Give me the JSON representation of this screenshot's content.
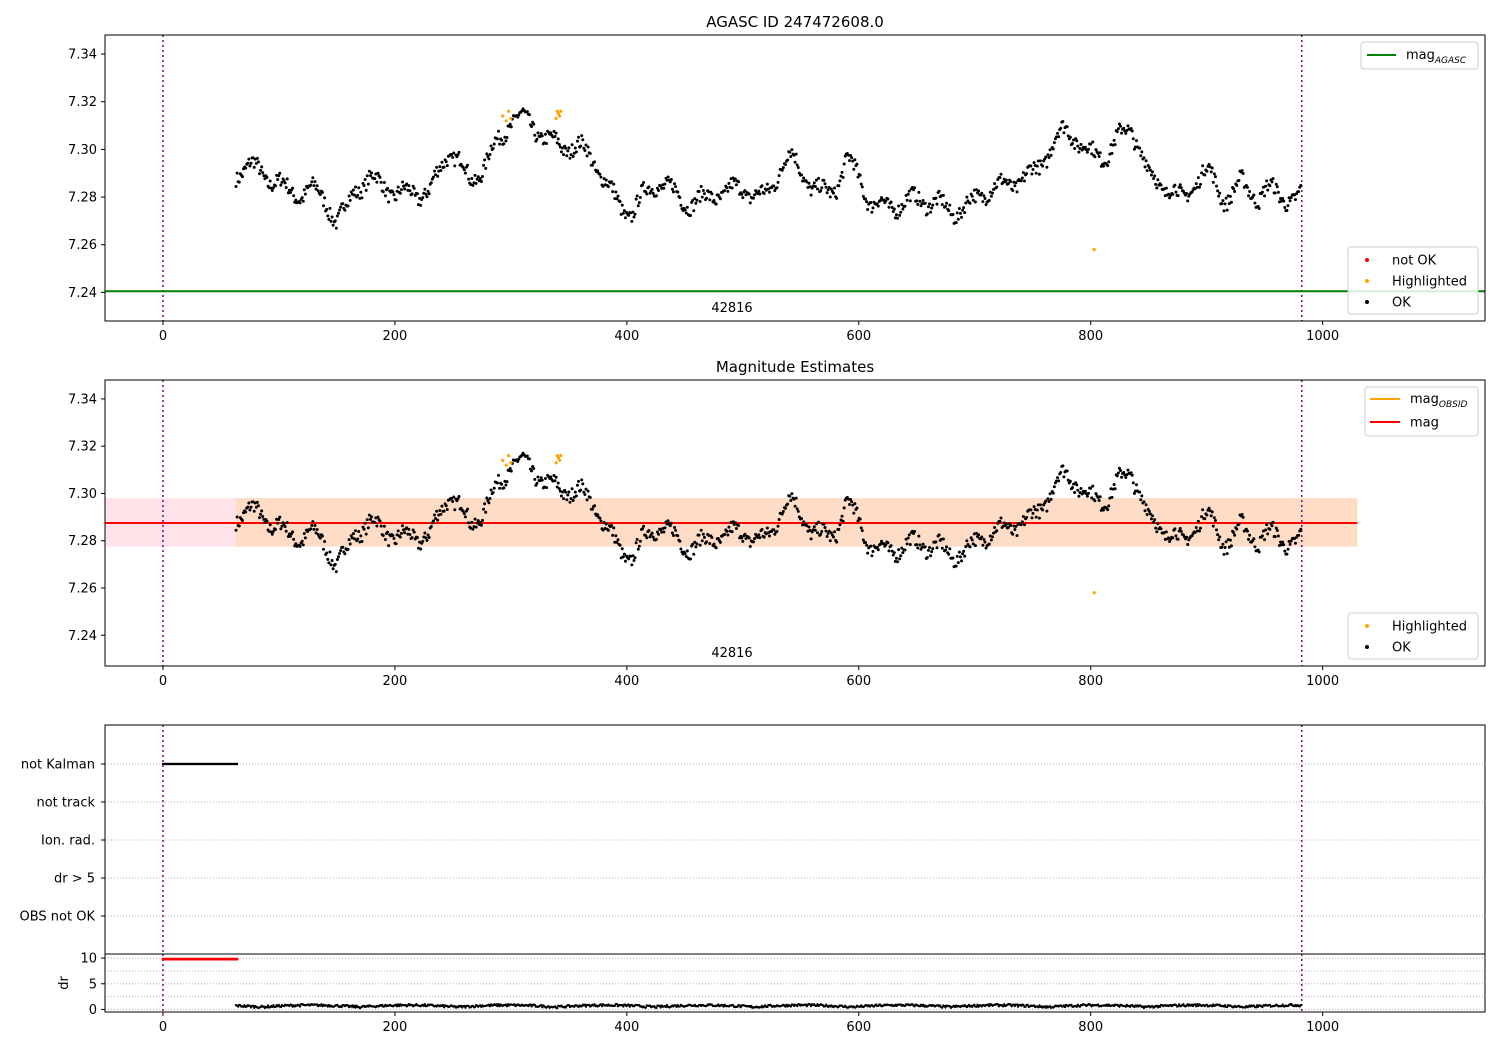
{
  "chart_data": [
    {
      "type": "scatter",
      "title": "AGASC ID 247472608.0",
      "xlabel": "",
      "ylabel": "",
      "xlim": [
        -50,
        1140
      ],
      "ylim": [
        7.228,
        7.348
      ],
      "x_ticks": [
        0,
        200,
        400,
        600,
        800,
        1000
      ],
      "y_ticks": [
        7.24,
        7.26,
        7.28,
        7.3,
        7.32,
        7.34
      ],
      "y_tick_labels": [
        "7.24",
        "7.26",
        "7.28",
        "7.30",
        "7.32",
        "7.34"
      ],
      "vlines": [
        0,
        982
      ],
      "obsid_label": {
        "x": 490,
        "text": "42816"
      },
      "lines": [
        {
          "name": "mag_AGASC",
          "base": "mag",
          "sub": "AGASC",
          "y": 7.2405,
          "color": "#008000"
        }
      ],
      "series": [
        {
          "name": "not OK",
          "color": "#ff0000",
          "x": [],
          "y": []
        },
        {
          "name": "Highlighted",
          "color": "#ffa500",
          "x": [
            293,
            296,
            298,
            300,
            339,
            340,
            341,
            342,
            343,
            803
          ],
          "y": [
            7.314,
            7.312,
            7.316,
            7.313,
            7.313,
            7.316,
            7.315,
            7.314,
            7.316,
            7.258
          ]
        },
        {
          "name": "OK",
          "color": "#000000",
          "x": [],
          "y": []
        }
      ],
      "legend_top": "top-right",
      "legend_bottom": "bottom-right"
    },
    {
      "type": "scatter",
      "title": "Magnitude Estimates",
      "xlabel": "",
      "ylabel": "",
      "xlim": [
        -50,
        1140
      ],
      "ylim": [
        7.227,
        7.348
      ],
      "x_ticks": [
        0,
        200,
        400,
        600,
        800,
        1000
      ],
      "y_ticks": [
        7.24,
        7.26,
        7.28,
        7.3,
        7.32,
        7.34
      ],
      "y_tick_labels": [
        "7.24",
        "7.26",
        "7.28",
        "7.30",
        "7.32",
        "7.34"
      ],
      "vlines": [
        0,
        982
      ],
      "obsid_label": {
        "x": 490,
        "text": "42816"
      },
      "mag_band": {
        "x0": -50,
        "x1": 1030,
        "y0": 7.2775,
        "y1": 7.298,
        "color": "#ffc0cb"
      },
      "obsid_band": {
        "x0": 63,
        "x1": 1030,
        "y0": 7.2775,
        "y1": 7.298,
        "color": "#ffdab9"
      },
      "lines": [
        {
          "name": "mag_OBSID",
          "base": "mag",
          "sub": "OBSID",
          "y": 7.2875,
          "color": "#ffa500"
        },
        {
          "name": "mag",
          "base": "mag",
          "sub": "",
          "y": 7.2875,
          "color": "#ff0000"
        }
      ],
      "series": [
        {
          "name": "Highlighted",
          "color": "#ffa500",
          "x": [
            293,
            296,
            298,
            300,
            339,
            340,
            341,
            342,
            343,
            803
          ],
          "y": [
            7.314,
            7.312,
            7.316,
            7.313,
            7.313,
            7.316,
            7.315,
            7.314,
            7.316,
            7.258
          ]
        },
        {
          "name": "OK",
          "color": "#000000",
          "x": [],
          "y": []
        }
      ],
      "legend_top": "top-right",
      "legend_bottom": "bottom-right"
    },
    {
      "type": "scatter",
      "title": "",
      "xlabel": "",
      "ylabel": "",
      "xlim": [
        -50,
        1140
      ],
      "x_ticks": [
        0,
        200,
        400,
        600,
        800,
        1000
      ],
      "vlines": [
        0,
        982
      ],
      "flag_rows": [
        "not Kalman",
        "not track",
        "Ion. rad.",
        "dr > 5",
        "OBS not OK"
      ],
      "not_kalman_x": [
        0,
        64
      ],
      "grid": true
    },
    {
      "type": "scatter",
      "title": "",
      "xlabel": "",
      "ylabel": "dr",
      "xlim": [
        -50,
        1140
      ],
      "ylim": [
        -0.5,
        10.8
      ],
      "x_ticks": [
        0,
        200,
        400,
        600,
        800,
        1000
      ],
      "y_ticks": [
        0,
        5,
        10
      ],
      "vlines": [
        0,
        982
      ],
      "red_points": {
        "x": [
          0,
          64
        ],
        "y": 9.8
      },
      "dr_points": {
        "x": [
          63,
          982
        ],
        "y_range": [
          0.0,
          1.3
        ]
      },
      "grid": true
    }
  ],
  "series_text": {
    "label_not_ok": "not OK",
    "label_highlighted": "Highlighted",
    "label_ok": "OK",
    "label_mag": "mag"
  },
  "texts": {
    "title_1": "AGASC ID 247472608.0",
    "title_2": "Magnitude Estimates",
    "obsid_1": "42816",
    "obsid_2": "42816",
    "dr_label": "dr"
  }
}
